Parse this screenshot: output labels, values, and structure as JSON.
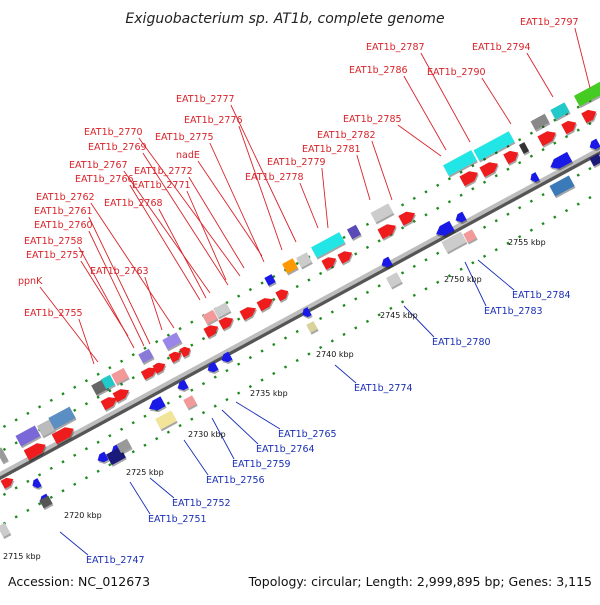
{
  "title": "Exiguobacterium sp. AT1b, complete genome",
  "footer": {
    "accession": "Accession: NC_012673",
    "summary": "Topology: circular; Length: 2,999,895 bp; Genes: 3,115"
  },
  "ticks": [
    "2715 kbp",
    "2720 kbp",
    "2725 kbp",
    "2730 kbp",
    "2735 kbp",
    "2740 kbp",
    "2745 kbp",
    "2750 kbp",
    "2755 kbp"
  ],
  "genes_top": [
    "EAT1b_2797",
    "EAT1b_2794",
    "EAT1b_2787",
    "EAT1b_2786",
    "EAT1b_2790",
    "EAT1b_2777",
    "EAT1b_2776",
    "EAT1b_2785",
    "EAT1b_2775",
    "EAT1b_2782",
    "EAT1b_2770",
    "EAT1b_2769",
    "EAT1b_2781",
    "nadE",
    "EAT1b_2779",
    "EAT1b_2767",
    "EAT1b_2772",
    "EAT1b_2778",
    "EAT1b_2766",
    "EAT1b_2771",
    "EAT1b_2762",
    "EAT1b_2768",
    "EAT1b_2761",
    "EAT1b_2760",
    "EAT1b_2758",
    "EAT1b_2757",
    "EAT1b_2763",
    "ppnK",
    "EAT1b_2755"
  ],
  "genes_bottom": [
    "EAT1b_2784",
    "EAT1b_2783",
    "EAT1b_2780",
    "EAT1b_2774",
    "EAT1b_2765",
    "EAT1b_2764",
    "EAT1b_2759",
    "EAT1b_2756",
    "EAT1b_2752",
    "EAT1b_2751",
    "EAT1b_2747"
  ],
  "colors": {
    "forward_cds": "#ee1c1c",
    "reverse_cds": "#1a1ae6",
    "top_label": "#d8232a",
    "bottom_label": "#1a2fb5",
    "tick": "#228b22",
    "backbone": "#9a9a9a"
  }
}
